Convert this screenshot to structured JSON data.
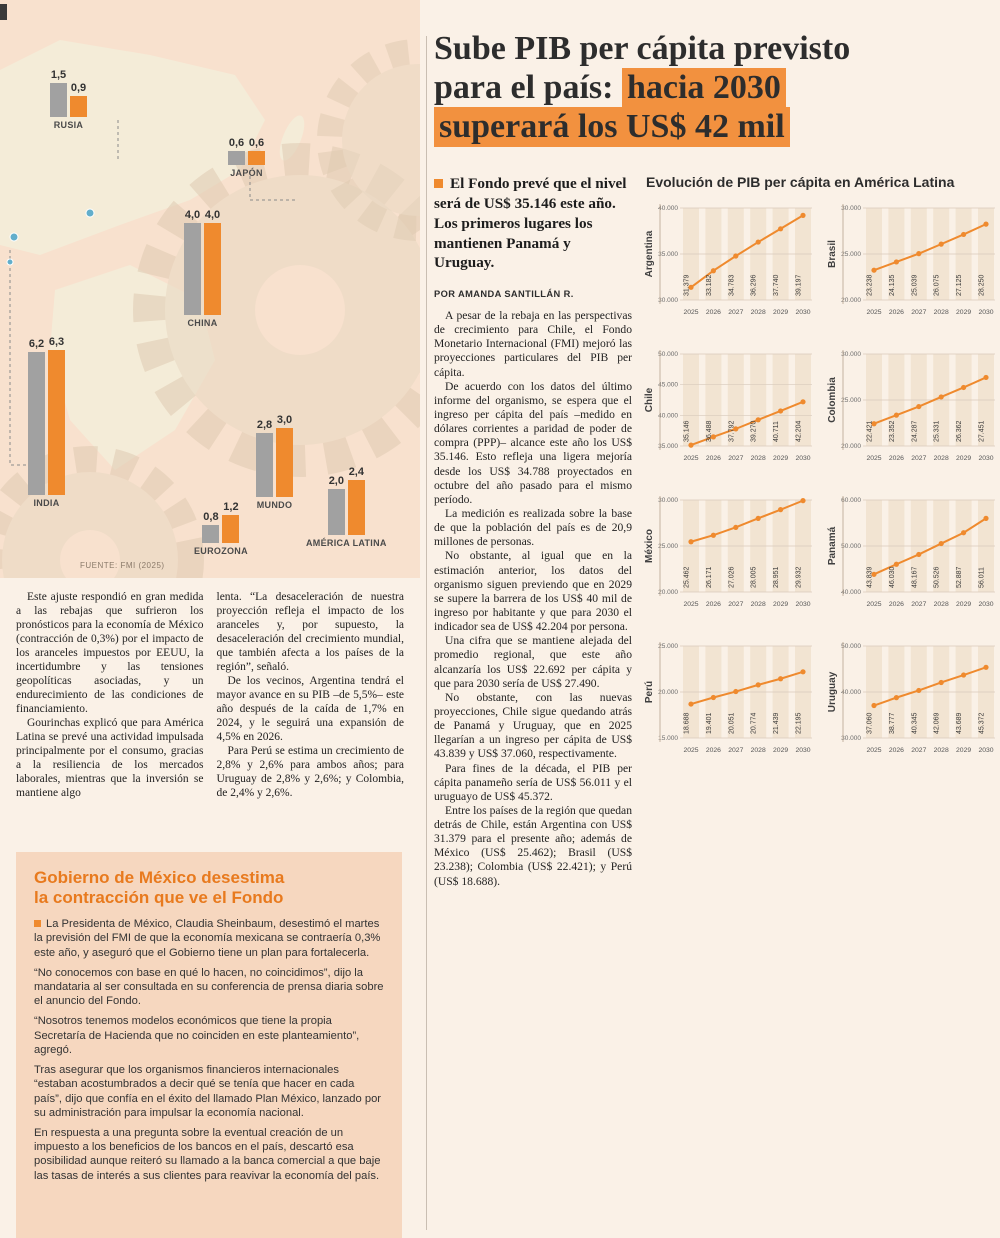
{
  "headline": {
    "line1": "Sube PIB per cápita previsto",
    "line2_normal": "para el país: ",
    "line2_highlight": "hacia 2030",
    "line3_highlight": "superará los US$ 42 mil"
  },
  "lead": {
    "text": "El Fondo prevé que el nivel será de US$ 35.146 este año. Los primeros lugares los mantienen Panamá y Uruguay."
  },
  "byline": "POR AMANDA SANTILLÁN R.",
  "article": {
    "paragraphs": [
      "A pesar de la rebaja en las perspectivas de crecimiento para Chile, el Fondo Monetario Internacional (FMI) mejoró las proyecciones particulares del PIB per cápita.",
      "De acuerdo con los datos del último informe del organismo, se espera que el ingreso per cápita del país –medido en dólares corrientes a paridad de poder de compra (PPP)– alcance este año los US$ 35.146. Esto refleja una ligera mejoría desde los US$ 34.788 proyectados en octubre del año pasado para el mismo período.",
      "La medición es realizada sobre la base de que la población del país es de 20,9 millones de personas.",
      "No obstante, al igual que en la estimación anterior, los datos del organismo siguen previendo que en 2029 se supere la barrera de los US$ 40 mil de ingreso por habitante y que para 2030 el indicador sea de US$ 42.204 por persona.",
      "Una cifra que se mantiene alejada del promedio regional, que este año alcanzaría los US$ 22.692 per cápita y que para 2030 sería de US$ 27.490.",
      "No obstante, con las nuevas proyecciones, Chile sigue quedando atrás de Panamá y Uruguay, que en 2025 llegarían a un ingreso per cápita de US$ 43.839 y US$ 37.060, respectivamente.",
      "Para fines de la década, el PIB per cápita panameño sería de US$ 56.011 y el uruguayo de US$ 45.372.",
      "Entre los países de la región que quedan detrás de Chile, están Argentina con US$ 31.379 para el presente año; además de México (US$ 25.462); Brasil (US$ 23.238); Colombia (US$ 22.421); y Perú (US$ 18.688)."
    ]
  },
  "left_columns": {
    "col1": [
      "Este ajuste respondió en gran medida a las rebajas que sufrieron los pronósticos para la economía de México (contracción de 0,3%) por el impacto de los aranceles impuestos por EEUU, la incertidumbre y las tensiones geopolíticas asociadas, y un endurecimiento de las condiciones de financiamiento.",
      "Gourinchas explicó que para América Latina se prevé una actividad impulsada principalmente por el consumo, gracias a la resiliencia de los mercados laborales, mientras que la inversión se mantiene algo"
    ],
    "col2": [
      "lenta. “La desaceleración de nuestra proyección refleja el impacto de los aranceles y, por supuesto, la desaceleración del crecimiento mundial, que también afecta a los países de la región”, señaló.",
      "De los vecinos, Argentina tendrá el mayor avance en su PIB –de 5,5%– este año después de la caída de 1,7% en 2024, y le seguirá una expansión de 4,5% en 2026.",
      "Para Perú se estima un crecimiento de 2,8% y 2,6% para ambos años; para Uruguay de 2,8% y 2,6%; y Colombia, de 2,4% y 2,6%."
    ]
  },
  "box": {
    "title_line1": "Gobierno de México desestima",
    "title_line2": "la contracción que ve el Fondo",
    "paragraphs": [
      "La Presidenta de México, Claudia Sheinbaum, desestimó el martes la previsión del FMI de que la economía mexicana se contraería 0,3% este año, y aseguró que el Gobierno tiene un plan para fortalecerla.",
      "“No conocemos con base en qué lo hacen, no coincidimos”, dijo la mandataria al ser consultada en su conferencia de prensa diaria sobre el anuncio del Fondo.",
      "“Nosotros tenemos modelos económicos que tiene la propia Secretaría de Hacienda que no coinciden en este planteamiento”, agregó.",
      "Tras asegurar que los organismos financieros internacionales “estaban acostumbrados a decir qué se tenía que hacer en cada país”, dijo que confía en el éxito del llamado Plan México, lanzado por su administración para impulsar la economía nacional.",
      "En respuesta a una pregunta sobre la eventual creación de un impuesto a los beneficios de los bancos en el país, descartó esa posibilidad aunque reiteró su llamado a la banca comercial a que baje las tasas de interés a sus clientes para reavivar la economía del país."
    ]
  },
  "colors": {
    "accent": "#ef8a2e",
    "bar_gray": "#a1a1a1",
    "highlight": "#f2913f"
  },
  "chart_data": [
    {
      "type": "bar",
      "source": "FUENTE: FMI (2025)",
      "groups": [
        {
          "id": "rusia",
          "label": "RUSIA",
          "values": [
            1.5,
            0.9
          ],
          "labels": [
            "1,5",
            "0,9"
          ]
        },
        {
          "id": "japon",
          "label": "JAPÓN",
          "values": [
            0.6,
            0.6
          ],
          "labels": [
            "0,6",
            "0,6"
          ]
        },
        {
          "id": "china",
          "label": "CHINA",
          "values": [
            4.0,
            4.0
          ],
          "labels": [
            "4,0",
            "4,0"
          ]
        },
        {
          "id": "india",
          "label": "INDIA",
          "values": [
            6.2,
            6.3
          ],
          "labels": [
            "6,2",
            "6,3"
          ]
        },
        {
          "id": "mundo",
          "label": "MUNDO",
          "values": [
            2.8,
            3.0
          ],
          "labels": [
            "2,8",
            "3,0"
          ]
        },
        {
          "id": "eurozona",
          "label": "EUROZONA",
          "values": [
            0.8,
            1.2
          ],
          "labels": [
            "0,8",
            "1,2"
          ]
        },
        {
          "id": "america-latina",
          "label": "AMÉRICA LATINA",
          "values": [
            2.0,
            2.4
          ],
          "labels": [
            "2,0",
            "2,4"
          ]
        }
      ]
    },
    {
      "type": "line",
      "title": "Evolución de PIB per cápita en América Latina",
      "x": [
        "2025",
        "2026",
        "2027",
        "2028",
        "2029",
        "2030"
      ],
      "panels": [
        {
          "name": "Argentina",
          "yticks": [
            {
              "v": 40000,
              "label": "40.000"
            },
            {
              "v": 35000,
              "label": "35.000"
            },
            {
              "v": 30000,
              "label": "30.000"
            }
          ],
          "values": [
            31379,
            33182,
            34783,
            36296,
            37740,
            39197
          ],
          "labels": [
            "31.379",
            "33.182",
            "34.783",
            "36.296",
            "37.740",
            "39.197"
          ]
        },
        {
          "name": "Brasil",
          "yticks": [
            {
              "v": 30000,
              "label": "30.000"
            },
            {
              "v": 25000,
              "label": "25.000"
            },
            {
              "v": 20000,
              "label": "20.000"
            }
          ],
          "values": [
            23238,
            24135,
            25039,
            26075,
            27125,
            28250
          ],
          "labels": [
            "23.238",
            "24.135",
            "25.039",
            "26.075",
            "27.125",
            "28.250"
          ]
        },
        {
          "name": "Chile",
          "yticks": [
            {
              "v": 50000,
              "label": "50.000"
            },
            {
              "v": 45000,
              "label": "45.000"
            },
            {
              "v": 40000,
              "label": "40.000"
            },
            {
              "v": 35000,
              "label": "35.000"
            }
          ],
          "values": [
            35146,
            36488,
            37792,
            39270,
            40711,
            42204
          ],
          "labels": [
            "35.146",
            "36.488",
            "37.792",
            "39.270",
            "40.711",
            "42.204"
          ]
        },
        {
          "name": "Colombia",
          "yticks": [
            {
              "v": 30000,
              "label": "30.000"
            },
            {
              "v": 25000,
              "label": "25.000"
            },
            {
              "v": 20000,
              "label": "20.000"
            }
          ],
          "values": [
            22421,
            23352,
            24287,
            25331,
            26362,
            27451
          ],
          "labels": [
            "22.421",
            "23.352",
            "24.287",
            "25.331",
            "26.362",
            "27.451"
          ]
        },
        {
          "name": "México",
          "yticks": [
            {
              "v": 30000,
              "label": "30.000"
            },
            {
              "v": 25000,
              "label": "25.000"
            },
            {
              "v": 20000,
              "label": "20.000"
            }
          ],
          "values": [
            25462,
            26171,
            27026,
            28005,
            28951,
            29932
          ],
          "labels": [
            "25.462",
            "26.171",
            "27.026",
            "28.005",
            "28.951",
            "29.932"
          ]
        },
        {
          "name": "Panamá",
          "yticks": [
            {
              "v": 60000,
              "label": "60.000"
            },
            {
              "v": 50000,
              "label": "50.000"
            },
            {
              "v": 40000,
              "label": "40.000"
            }
          ],
          "values": [
            43839,
            46030,
            48167,
            50526,
            52887,
            56011
          ],
          "labels": [
            "43.839",
            "46.030",
            "48.167",
            "50.526",
            "52.887",
            "56.011"
          ]
        },
        {
          "name": "Perú",
          "yticks": [
            {
              "v": 25000,
              "label": "25.000"
            },
            {
              "v": 20000,
              "label": "20.000"
            },
            {
              "v": 15000,
              "label": "15.000"
            }
          ],
          "values": [
            18688,
            19401,
            20051,
            20774,
            21439,
            22195
          ],
          "labels": [
            "18.688",
            "19.401",
            "20.051",
            "20.774",
            "21.439",
            "22.195"
          ]
        },
        {
          "name": "Uruguay",
          "yticks": [
            {
              "v": 50000,
              "label": "50.000"
            },
            {
              "v": 40000,
              "label": "40.000"
            },
            {
              "v": 30000,
              "label": "30.000"
            }
          ],
          "values": [
            37060,
            38777,
            40345,
            42069,
            43689,
            45372
          ],
          "labels": [
            "37.060",
            "38.777",
            "40.345",
            "42.069",
            "43.689",
            "45.372"
          ]
        }
      ]
    }
  ]
}
